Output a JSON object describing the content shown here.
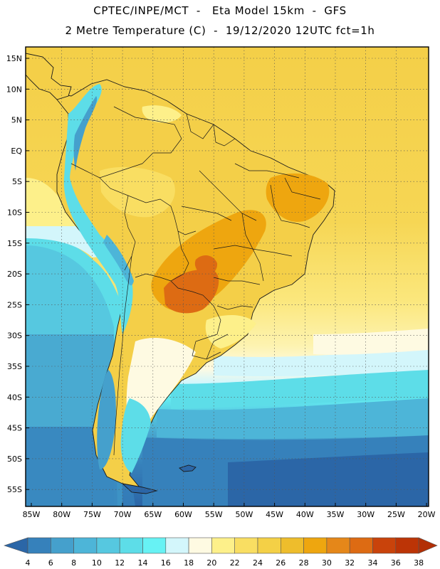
{
  "header": {
    "title_line1": "CPTEC/INPE/MCT  -   Eta Model 15km  -  GFS",
    "title_line2": "2 Metre Temperature (C)  -  19/12/2020 12UTC fct=1h"
  },
  "map": {
    "lat_labels": [
      "15N",
      "10N",
      "5N",
      "EQ",
      "5S",
      "10S",
      "15S",
      "20S",
      "25S",
      "30S",
      "35S",
      "40S",
      "45S",
      "50S",
      "55S"
    ],
    "lon_labels": [
      "85W",
      "80W",
      "75W",
      "70W",
      "65W",
      "60W",
      "55W",
      "50W",
      "45W",
      "40W",
      "35W",
      "30W",
      "25W",
      "20W"
    ],
    "colors": {
      "frame": "#000000",
      "grid": "#555555",
      "border": "#1a1a1a"
    }
  },
  "legend": {
    "ticks": [
      "4",
      "6",
      "8",
      "10",
      "12",
      "14",
      "16",
      "18",
      "20",
      "22",
      "24",
      "26",
      "28",
      "30",
      "32",
      "34",
      "36",
      "38"
    ],
    "colors": [
      "#2b66a7",
      "#3681bb",
      "#45a0cc",
      "#4db5d8",
      "#56c8e0",
      "#5ddde8",
      "#67f2f4",
      "#d3f6fb",
      "#fefae2",
      "#fdf08a",
      "#f9de62",
      "#f4d046",
      "#eebd2c",
      "#eea60f",
      "#e58719",
      "#dd6b13",
      "#c9430b",
      "#bc3406",
      "#b22f05"
    ]
  }
}
